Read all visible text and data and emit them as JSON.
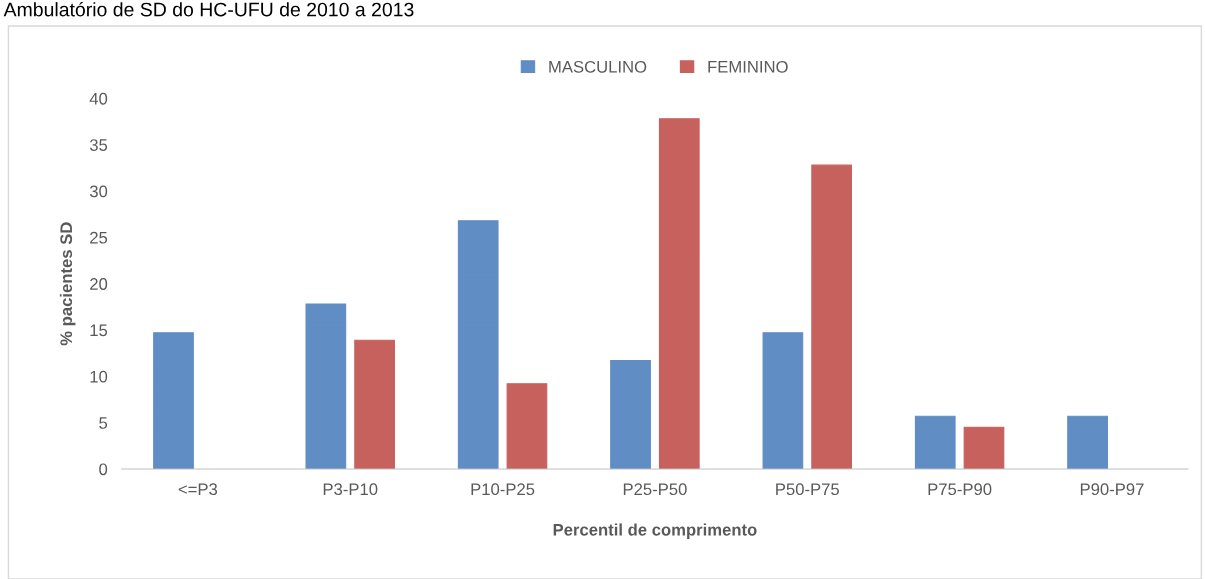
{
  "chart_data": {
    "type": "bar",
    "title": "Ambulatório de SD do HC-UFU de 2010 a 2013",
    "xlabel": "Percentil de comprimento",
    "ylabel": "% pacientes SD",
    "categories": [
      "<=P3",
      "P3-P10",
      "P10-P25",
      "P25-P50",
      "P50-P75",
      "P75-P90",
      "P90-P97"
    ],
    "series": [
      {
        "name": "MASCULINO",
        "color": "#4f81bd",
        "values": [
          14.7,
          17.8,
          26.8,
          11.7,
          14.7,
          5.7,
          5.7
        ]
      },
      {
        "name": "FEMININO",
        "color": "#c0504d",
        "values": [
          null,
          13.9,
          9.2,
          37.8,
          32.8,
          4.5,
          null
        ]
      }
    ],
    "ylim": [
      0,
      40
    ],
    "yticks": [
      0,
      5,
      10,
      15,
      20,
      25,
      30,
      35,
      40
    ],
    "grid": false,
    "legend": "top"
  }
}
